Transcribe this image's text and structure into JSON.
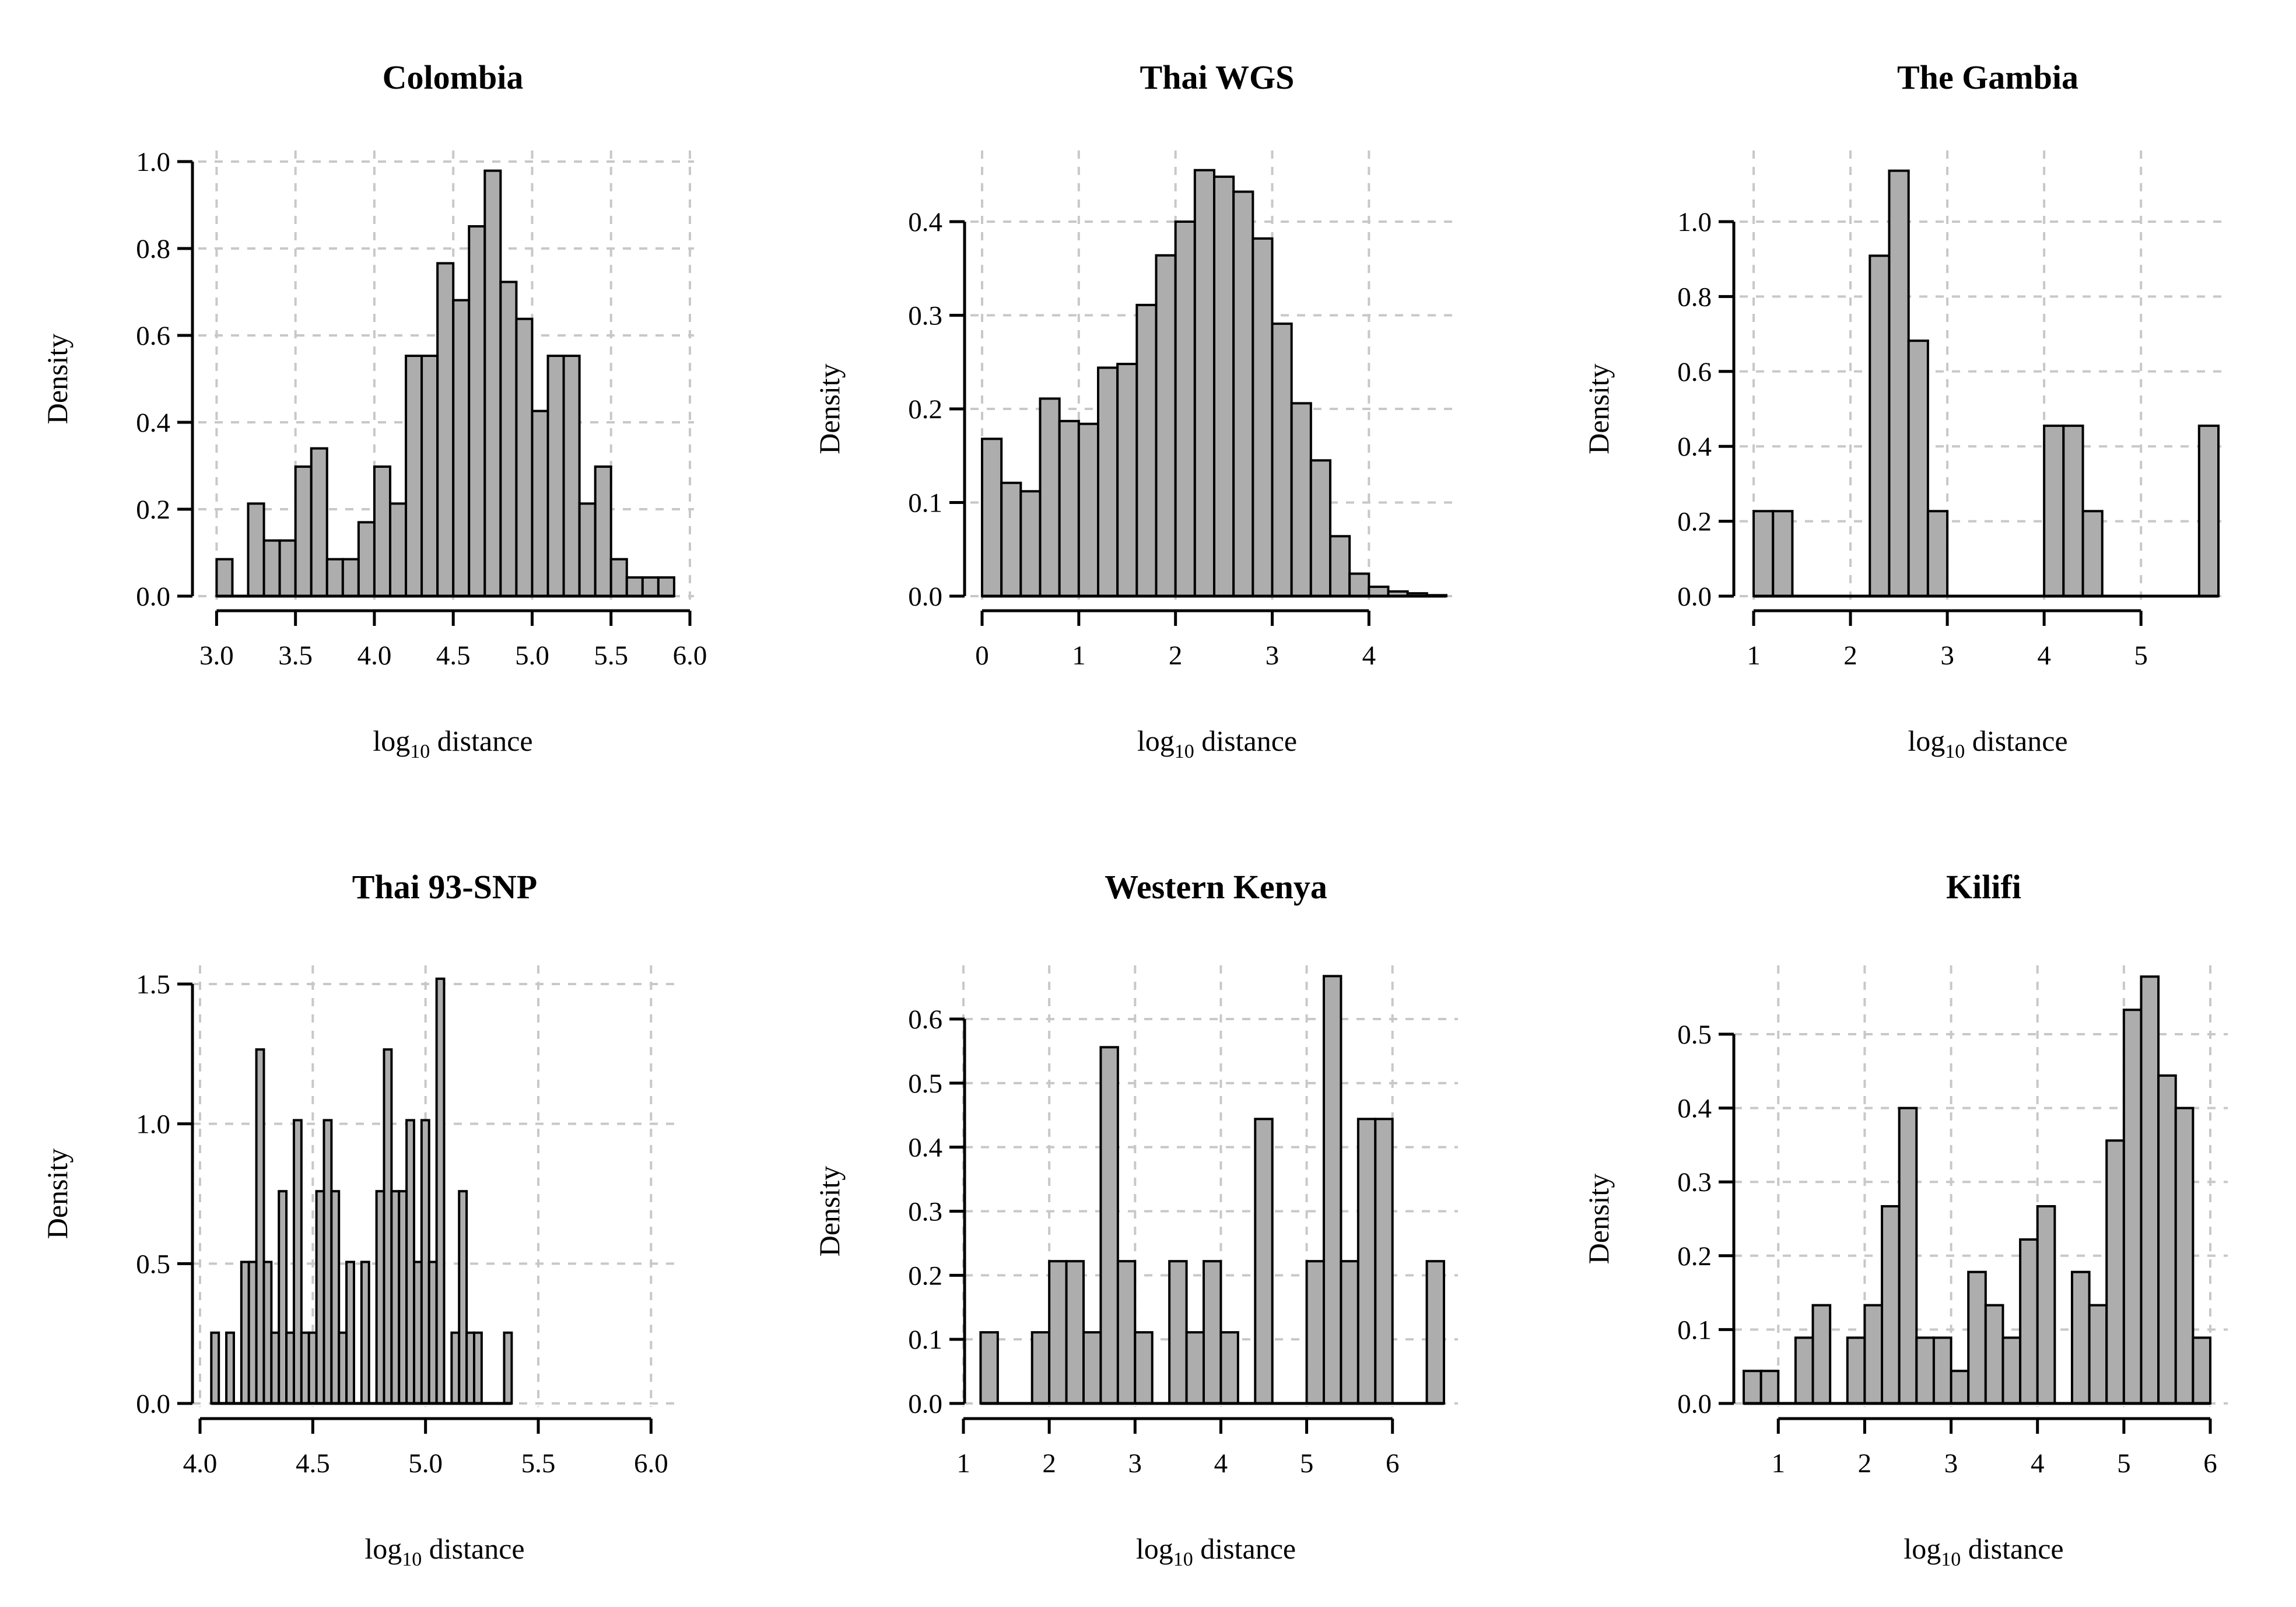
{
  "figure": {
    "colors": {
      "bar_fill": "#adadad",
      "bar_stroke": "#000000",
      "grid": "#c8c8c8",
      "background": "#ffffff"
    }
  },
  "chart_data": [
    {
      "type": "bar",
      "title": "Colombia",
      "xlabel_main": "log",
      "xlabel_sub": "10",
      "xlabel_rest": " distance",
      "ylabel": "Density",
      "grid": true,
      "xlim": [
        2.98,
        6.0
      ],
      "ylim": [
        0,
        1.0
      ],
      "xticks": [
        3.0,
        3.5,
        4.0,
        4.5,
        5.0,
        5.5,
        6.0
      ],
      "xtick_labels": [
        "3.0",
        "3.5",
        "4.0",
        "4.5",
        "5.0",
        "5.5",
        "6.0"
      ],
      "yticks": [
        0,
        0.2,
        0.4,
        0.6,
        0.8,
        1.0
      ],
      "ytick_labels": [
        "0.0",
        "0.2",
        "0.4",
        "0.6",
        "0.8",
        "1.0"
      ],
      "bin_start": 3.0,
      "bin_width": 0.1,
      "values": [
        0.085,
        0,
        0.213,
        0.128,
        0.128,
        0.298,
        0.34,
        0.085,
        0.085,
        0.17,
        0.298,
        0.213,
        0.553,
        0.553,
        0.766,
        0.681,
        0.851,
        0.979,
        0.723,
        0.638,
        0.426,
        0.553,
        0.553,
        0.213,
        0.298,
        0.085,
        0.043,
        0.043,
        0.043
      ]
    },
    {
      "type": "bar",
      "title": "Thai WGS",
      "xlabel_main": "log",
      "xlabel_sub": "10",
      "xlabel_rest": " distance",
      "ylabel": "Density",
      "grid": true,
      "xlim": [
        0,
        4.8
      ],
      "ylim": [
        0,
        0.4
      ],
      "xticks": [
        0,
        1,
        2,
        3,
        4
      ],
      "xtick_labels": [
        "0",
        "1",
        "2",
        "3",
        "4"
      ],
      "yticks": [
        0,
        0.1,
        0.2,
        0.3,
        0.4
      ],
      "ytick_labels": [
        "0.0",
        "0.1",
        "0.2",
        "0.3",
        "0.4"
      ],
      "bin_start": 0,
      "bin_width": 0.2,
      "values": [
        0.168,
        0.121,
        0.112,
        0.211,
        0.187,
        0.184,
        0.244,
        0.248,
        0.311,
        0.364,
        0.4,
        0.455,
        0.448,
        0.432,
        0.382,
        0.291,
        0.206,
        0.145,
        0.064,
        0.024,
        0.01,
        0.005,
        0.003,
        0.001
      ]
    },
    {
      "type": "bar",
      "title": "The Gambia",
      "xlabel_main": "log",
      "xlabel_sub": "10",
      "xlabel_rest": " distance",
      "ylabel": "Density",
      "grid": true,
      "xlim": [
        1,
        5.8
      ],
      "ylim": [
        0,
        1.0
      ],
      "xticks": [
        1,
        2,
        3,
        4,
        5
      ],
      "xtick_labels": [
        "1",
        "2",
        "3",
        "4",
        "5"
      ],
      "yticks": [
        0,
        0.2,
        0.4,
        0.6,
        0.8,
        1.0
      ],
      "ytick_labels": [
        "0.0",
        "0.2",
        "0.4",
        "0.6",
        "0.8",
        "1.0"
      ],
      "bin_start": 1.0,
      "bin_width": 0.2,
      "values": [
        0.227,
        0.227,
        0,
        0,
        0,
        0,
        0.909,
        1.136,
        0.682,
        0.227,
        0,
        0,
        0,
        0,
        0,
        0.455,
        0.455,
        0.227,
        0,
        0,
        0,
        0,
        0,
        0.455
      ]
    },
    {
      "type": "bar",
      "title": "Thai 93-SNP",
      "xlabel_main": "log",
      "xlabel_sub": "10",
      "xlabel_rest": " distance",
      "ylabel": "Density",
      "grid": true,
      "xlim": [
        4.0,
        6.1
      ],
      "ylim": [
        0,
        1.5
      ],
      "xticks": [
        4.0,
        4.5,
        5.0,
        5.5,
        6.0
      ],
      "xtick_labels": [
        "4.0",
        "4.5",
        "5.0",
        "5.5",
        "6.0"
      ],
      "yticks": [
        0,
        0.5,
        1.0,
        1.5
      ],
      "ytick_labels": [
        "0.0",
        "0.5",
        "1.0",
        "1.5"
      ],
      "bin_start": 4.05,
      "bin_width": 0.0333,
      "values": [
        0.253,
        0,
        0.253,
        0,
        0.506,
        0.506,
        1.266,
        0.506,
        0.253,
        0.759,
        0.253,
        1.013,
        0.253,
        0.253,
        0.759,
        1.013,
        0.759,
        0.253,
        0.506,
        0,
        0.506,
        0,
        0.759,
        1.266,
        0.759,
        0.759,
        1.013,
        0.506,
        1.013,
        0.506,
        1.519,
        0,
        0.253,
        0.759,
        0.253,
        0.253,
        0,
        0,
        0,
        0.253
      ]
    },
    {
      "type": "bar",
      "title": "Western Kenya",
      "xlabel_main": "log",
      "xlabel_sub": "10",
      "xlabel_rest": " distance",
      "ylabel": "Density",
      "grid": true,
      "xlim": [
        1.0,
        6.6
      ],
      "ylim": [
        0,
        0.6
      ],
      "xticks": [
        1,
        2,
        3,
        4,
        5,
        6
      ],
      "xtick_labels": [
        "1",
        "2",
        "3",
        "4",
        "5",
        "6"
      ],
      "yticks": [
        0,
        0.1,
        0.2,
        0.3,
        0.4,
        0.5,
        0.6
      ],
      "ytick_labels": [
        "0.0",
        "0.1",
        "0.2",
        "0.3",
        "0.4",
        "0.5",
        "0.6"
      ],
      "bin_start": 1.2,
      "bin_width": 0.2,
      "values": [
        0.111,
        0,
        0,
        0.111,
        0.222,
        0.222,
        0.111,
        0.556,
        0.222,
        0.111,
        0,
        0.222,
        0.111,
        0.222,
        0.111,
        0,
        0.444,
        0,
        0,
        0.222,
        0.667,
        0.222,
        0.444,
        0.444,
        0,
        0,
        0.222
      ]
    },
    {
      "type": "bar",
      "title": "Kilifi",
      "xlabel_main": "log",
      "xlabel_sub": "10",
      "xlabel_rest": " distance",
      "ylabel": "Density",
      "grid": true,
      "xlim": [
        0.6,
        6.0
      ],
      "ylim": [
        0,
        0.5
      ],
      "xticks": [
        1,
        2,
        3,
        4,
        5,
        6
      ],
      "xtick_labels": [
        "1",
        "2",
        "3",
        "4",
        "5",
        "6"
      ],
      "yticks": [
        0,
        0.1,
        0.2,
        0.3,
        0.4,
        0.5
      ],
      "ytick_labels": [
        "0.0",
        "0.1",
        "0.2",
        "0.3",
        "0.4",
        "0.5"
      ],
      "bin_start": 0.6,
      "bin_width": 0.2,
      "values": [
        0.044,
        0.044,
        0,
        0.089,
        0.133,
        0,
        0.089,
        0.133,
        0.267,
        0.4,
        0.089,
        0.089,
        0.044,
        0.178,
        0.133,
        0.089,
        0.222,
        0.267,
        0,
        0.178,
        0.133,
        0.356,
        0.533,
        0.578,
        0.444,
        0.4,
        0.089
      ]
    }
  ]
}
